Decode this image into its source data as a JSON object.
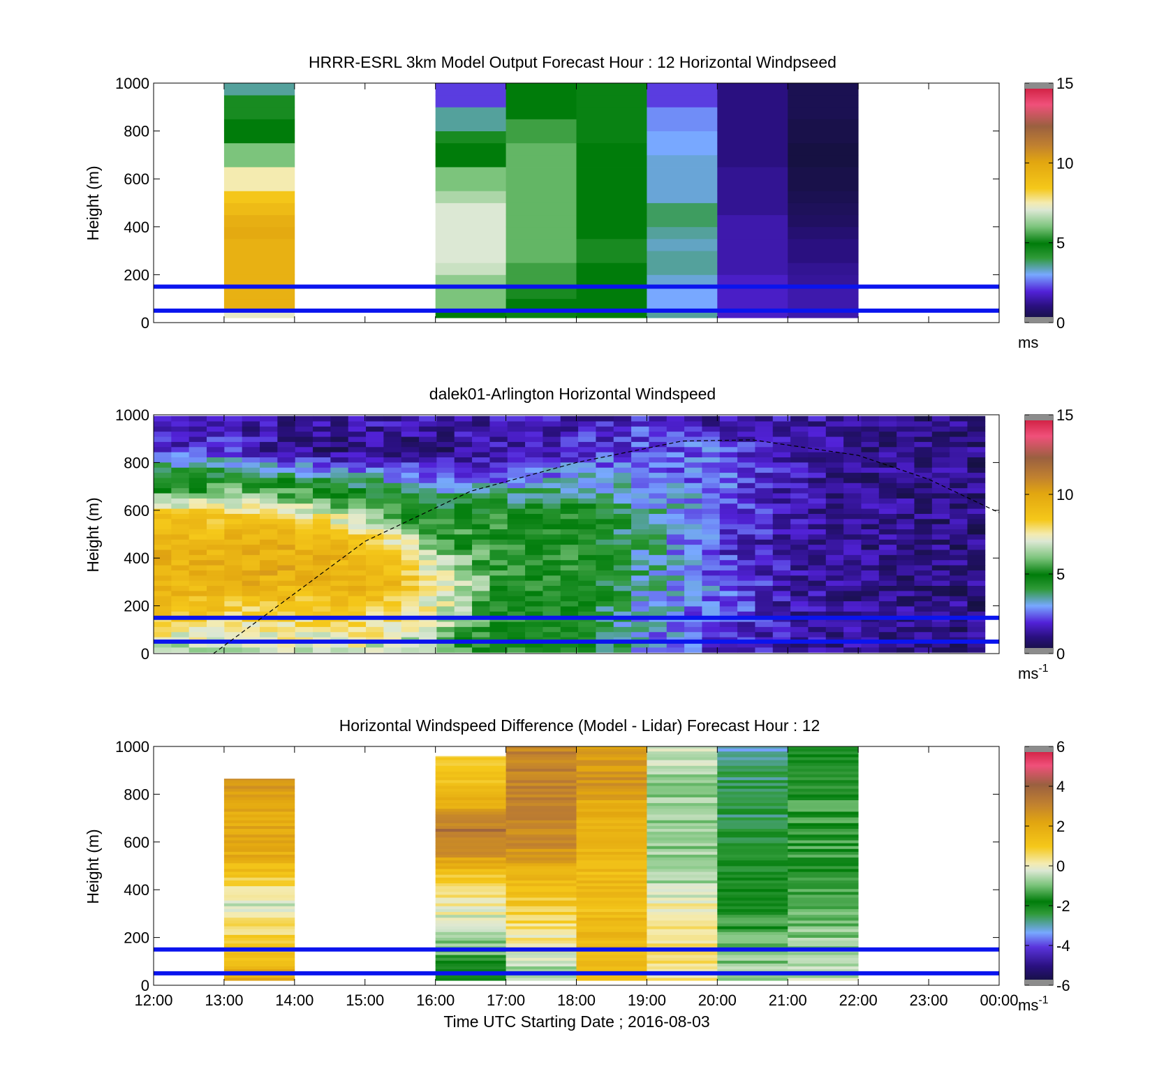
{
  "figure": {
    "xlabel": "Time UTC  Starting Date ; 2016-08-03",
    "xticks": [
      "12:00",
      "13:00",
      "14:00",
      "15:00",
      "16:00",
      "17:00",
      "18:00",
      "19:00",
      "20:00",
      "21:00",
      "22:00",
      "23:00",
      "00:00"
    ]
  },
  "chart_data": [
    {
      "type": "heatmap",
      "title": "HRRR-ESRL 3km Model Output   Forecast Hour : 12 Horizontal Windpseed",
      "ylabel": "Height (m)",
      "ylim": [
        0,
        1000
      ],
      "yticks": [
        "0",
        "200",
        "400",
        "600",
        "800",
        "1000"
      ],
      "colorbar": {
        "range": [
          0,
          15
        ],
        "ticks": [
          "0",
          "5",
          "10",
          "15"
        ],
        "unit": "ms",
        "unit_sup": ""
      },
      "hours": [
        "13:00",
        "16:00",
        "17:00",
        "18:00",
        "19:00",
        "20:00",
        "21:00"
      ],
      "levels_m": [
        25,
        75,
        125,
        175,
        225,
        275,
        325,
        375,
        425,
        475,
        525,
        575,
        625,
        675,
        725,
        775,
        825,
        875,
        925,
        975
      ],
      "values": [
        [
          7.2,
          9.5,
          9.5,
          9.5,
          9.5,
          9.5,
          9.5,
          9.8,
          9.6,
          9.0,
          8.5,
          7.5,
          7.5,
          6.0,
          6.0,
          5.0,
          5.0,
          4.5,
          4.5,
          3.5
        ],
        [
          5.0,
          6.0,
          6.0,
          6.2,
          6.8,
          7.0,
          7.0,
          7.0,
          7.0,
          7.0,
          6.5,
          6.0,
          6.0,
          5.0,
          5.0,
          4.5,
          3.5,
          3.5,
          2.2,
          2.2
        ],
        [
          4.8,
          5.0,
          5.2,
          5.5,
          5.5,
          5.8,
          5.8,
          5.8,
          5.8,
          5.8,
          5.8,
          5.8,
          5.8,
          5.8,
          5.8,
          5.5,
          5.5,
          5.0,
          5.0,
          5.0
        ],
        [
          5.0,
          5.0,
          5.0,
          5.0,
          5.0,
          5.2,
          5.2,
          5.0,
          5.0,
          5.0,
          5.0,
          5.0,
          5.0,
          5.0,
          5.0,
          4.8,
          4.8,
          4.8,
          4.8,
          4.8
        ],
        [
          3.5,
          3.0,
          3.0,
          3.2,
          3.5,
          3.5,
          3.3,
          3.5,
          3.8,
          3.8,
          3.2,
          3.2,
          3.2,
          3.2,
          3.0,
          3.0,
          2.8,
          2.8,
          2.2,
          2.2
        ],
        [
          1.8,
          1.8,
          1.8,
          1.8,
          1.5,
          1.5,
          1.5,
          1.5,
          1.5,
          1.2,
          1.2,
          1.2,
          1.2,
          1.0,
          1.0,
          1.0,
          1.0,
          1.0,
          1.0,
          1.0
        ],
        [
          1.5,
          1.5,
          1.5,
          1.3,
          1.2,
          1.0,
          1.0,
          0.8,
          0.6,
          0.5,
          0.4,
          0.3,
          0.3,
          0.2,
          0.2,
          0.3,
          0.3,
          0.4,
          0.4,
          0.4
        ]
      ],
      "reference_lines_m": [
        50,
        150
      ],
      "reference_line_color": "#0a14ee"
    },
    {
      "type": "heatmap",
      "title": "dalek01-Arlington  Horizontal Windspeed",
      "ylabel": "Height (m)",
      "ylim": [
        0,
        1000
      ],
      "yticks": [
        "0",
        "200",
        "400",
        "600",
        "800",
        "1000"
      ],
      "colorbar": {
        "range": [
          0,
          15
        ],
        "ticks": [
          "0",
          "5",
          "10",
          "15"
        ],
        "unit": "ms",
        "unit_sup": "-1"
      },
      "time_range_h": [
        12,
        23.8
      ],
      "profile_keyframes": [
        {
          "hour": 12.0,
          "levels": [
            6.5,
            8.5,
            9.5,
            9.5,
            8.5,
            5.0,
            2.0,
            1.5
          ]
        },
        {
          "hour": 13.0,
          "levels": [
            6.5,
            8.0,
            9.5,
            9.5,
            8.5,
            5.5,
            2.0,
            1.5
          ]
        },
        {
          "hour": 14.0,
          "levels": [
            7.0,
            8.0,
            9.5,
            9.5,
            8.0,
            5.0,
            1.2,
            1.2
          ]
        },
        {
          "hour": 15.0,
          "levels": [
            7.0,
            8.0,
            9.5,
            9.0,
            6.5,
            4.0,
            1.0,
            1.5
          ]
        },
        {
          "hour": 16.0,
          "levels": [
            6.0,
            7.0,
            8.0,
            6.0,
            5.0,
            3.0,
            1.0,
            1.5
          ]
        },
        {
          "hour": 17.0,
          "levels": [
            5.0,
            5.0,
            5.0,
            5.0,
            5.0,
            3.0,
            1.5,
            1.5
          ]
        },
        {
          "hour": 18.0,
          "levels": [
            5.0,
            4.5,
            5.0,
            5.0,
            5.0,
            3.5,
            2.0,
            1.5
          ]
        },
        {
          "hour": 19.0,
          "levels": [
            3.0,
            3.0,
            3.5,
            3.5,
            3.5,
            3.0,
            2.5,
            2.0
          ]
        },
        {
          "hour": 20.0,
          "levels": [
            2.0,
            2.5,
            2.5,
            2.0,
            2.5,
            2.5,
            2.5,
            1.5
          ]
        },
        {
          "hour": 21.0,
          "levels": [
            1.5,
            1.5,
            1.5,
            1.5,
            1.5,
            1.5,
            1.5,
            1.5
          ]
        },
        {
          "hour": 22.0,
          "levels": [
            1.2,
            1.2,
            1.2,
            1.2,
            1.2,
            1.2,
            1.2,
            1.2
          ]
        },
        {
          "hour": 23.8,
          "levels": [
            1.0,
            1.0,
            1.0,
            1.0,
            1.0,
            1.0,
            1.0,
            1.0
          ]
        }
      ],
      "profile_levels_m": [
        25,
        150,
        300,
        450,
        575,
        700,
        850,
        975
      ],
      "boundary_layer_curve": [
        {
          "hour": 12.85,
          "height_m": 0
        },
        {
          "hour": 15.0,
          "height_m": 470
        },
        {
          "hour": 16.5,
          "height_m": 680
        },
        {
          "hour": 18.0,
          "height_m": 800
        },
        {
          "hour": 19.5,
          "height_m": 890
        },
        {
          "hour": 20.5,
          "height_m": 895
        },
        {
          "hour": 22.0,
          "height_m": 830
        },
        {
          "hour": 23.0,
          "height_m": 730
        },
        {
          "hour": 24.0,
          "height_m": 590
        }
      ],
      "reference_lines_m": [
        50,
        150
      ],
      "reference_line_color": "#0a14ee"
    },
    {
      "type": "heatmap",
      "title": "Horizontal Windspeed Difference (Model - Lidar) Forecast Hour : 12",
      "ylabel": "Height (m)",
      "ylim": [
        0,
        1000
      ],
      "yticks": [
        "0",
        "200",
        "400",
        "600",
        "800",
        "1000"
      ],
      "colorbar": {
        "range": [
          -6,
          6
        ],
        "ticks": [
          "-6",
          "-4",
          "-2",
          "0",
          "2",
          "4",
          "6"
        ],
        "unit": "ms",
        "unit_sup": "-1"
      },
      "hours": [
        "13:00",
        "16:00",
        "17:00",
        "18:00",
        "19:00",
        "20:00",
        "21:00"
      ],
      "top_m": [
        865,
        960,
        1000,
        1000,
        1000,
        1000,
        1000
      ],
      "levels_m": [
        50,
        150,
        250,
        350,
        450,
        550,
        650,
        750,
        850,
        950
      ],
      "values": [
        [
          2.0,
          1.0,
          0.4,
          -0.4,
          1.0,
          2.0,
          2.0,
          2.0,
          2.5,
          null
        ],
        [
          -1.8,
          -1.0,
          -0.5,
          0.3,
          1.0,
          2.5,
          3.5,
          2.0,
          1.0,
          1.0
        ],
        [
          -0.8,
          0.0,
          0.5,
          1.0,
          1.5,
          2.5,
          3.0,
          3.0,
          3.0,
          3.0
        ],
        [
          1.2,
          1.5,
          1.5,
          1.2,
          1.5,
          1.5,
          1.5,
          2.0,
          2.5,
          2.5
        ],
        [
          0.3,
          0.4,
          0.5,
          0.0,
          -0.8,
          -0.8,
          -0.8,
          -0.8,
          -0.8,
          -0.5
        ],
        [
          -0.8,
          -1.0,
          -1.5,
          -2.0,
          -2.0,
          -2.2,
          -2.5,
          -2.5,
          -2.5,
          -3.0
        ],
        [
          -0.5,
          -0.8,
          -1.0,
          -1.2,
          -1.5,
          -1.5,
          -1.5,
          -1.5,
          -1.8,
          -2.0
        ]
      ],
      "reference_lines_m": [
        50,
        150
      ],
      "reference_line_color": "#0a14ee"
    }
  ]
}
